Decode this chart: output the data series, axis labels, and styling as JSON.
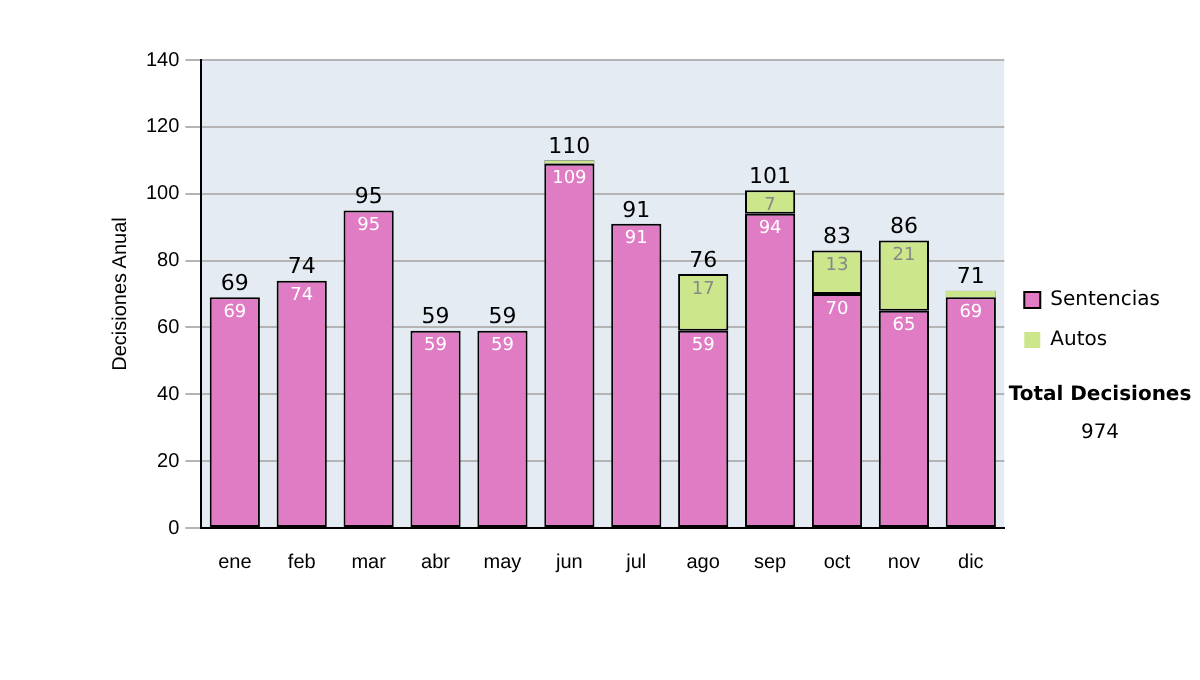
{
  "chart_data": {
    "type": "bar",
    "stacked": true,
    "ylabel": "Decisiones Anual",
    "categories": [
      "ene",
      "feb",
      "mar",
      "abr",
      "may",
      "jun",
      "jul",
      "ago",
      "sep",
      "oct",
      "nov",
      "dic"
    ],
    "series": [
      {
        "name": "Sentencias",
        "color": "#e07cc4",
        "values": [
          69,
          74,
          95,
          59,
          59,
          109,
          91,
          59,
          94,
          70,
          65,
          69
        ],
        "value_labels": [
          "69",
          "74",
          "95",
          "59",
          "59",
          "109",
          "91",
          "59",
          "94",
          "70",
          "65",
          "69"
        ]
      },
      {
        "name": "Autos",
        "color": "#cce68c",
        "values": [
          0,
          0,
          0,
          0,
          0,
          1,
          0,
          17,
          7,
          13,
          21,
          2
        ],
        "value_labels": [
          null,
          null,
          null,
          null,
          null,
          null,
          null,
          "17",
          "7",
          "13",
          "21",
          null
        ]
      }
    ],
    "totals": [
      "69",
      "74",
      "95",
      "59",
      "59",
      "110",
      "91",
      "76",
      "101",
      "83",
      "86",
      "71"
    ],
    "ylim": [
      0,
      140
    ],
    "yticks": [
      0,
      20,
      40,
      60,
      80,
      100,
      120,
      140
    ],
    "grid": "y",
    "legend": "right",
    "annotations": [
      "Total Decisiones",
      "974"
    ]
  }
}
